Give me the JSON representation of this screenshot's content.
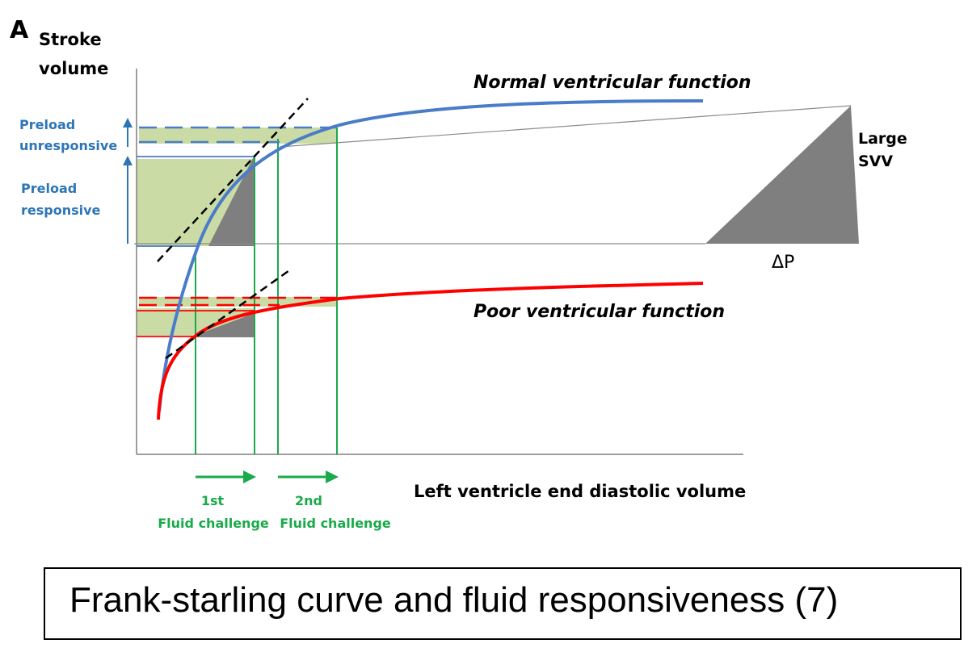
{
  "panel_letter": "A",
  "y_axis_label": [
    "Stroke",
    "volume"
  ],
  "x_axis_label": "Left ventricle end diastolic  volume",
  "curves": {
    "normal": {
      "label": "Normal ventricular function",
      "color": "#4a7cc9"
    },
    "poor": {
      "label": "Poor ventricular function",
      "color": "#ff0000"
    }
  },
  "left_annotations": {
    "unresponsive": [
      "Preload",
      "unresponsive"
    ],
    "responsive": [
      "Preload",
      "responsive"
    ],
    "color": "#2e75b6"
  },
  "right_annotations": {
    "svv": [
      "Large",
      "SVV"
    ],
    "delta_p": "ΔP"
  },
  "fluid_challenges": {
    "first": [
      "1st",
      "Fluid challenge"
    ],
    "second": [
      "2nd",
      "Fluid challenge"
    ],
    "color": "#1aaa4a"
  },
  "caption": "Frank-starling curve and fluid responsiveness (7)"
}
